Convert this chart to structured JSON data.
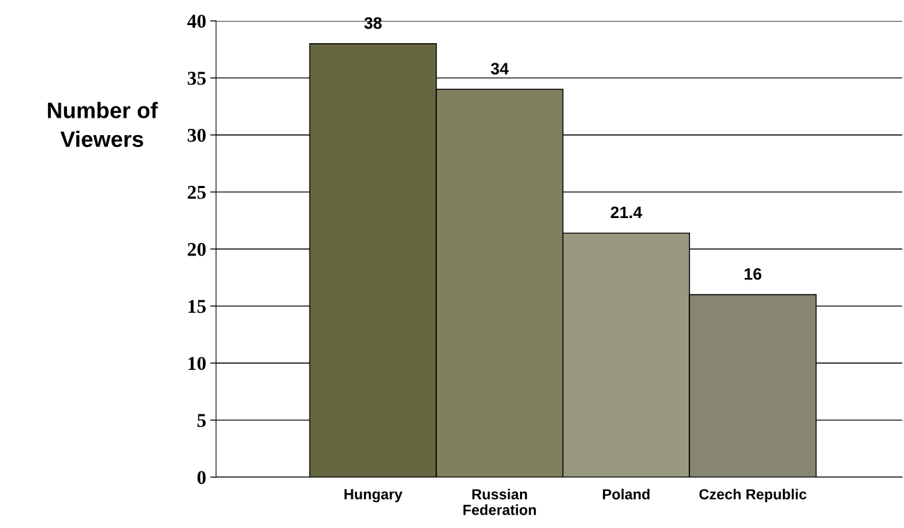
{
  "chart_data": {
    "type": "bar",
    "ylabel": "Number of\nViewers",
    "categories": [
      "Hungary",
      "Russian\nFederation",
      "Poland",
      "Czech Republic"
    ],
    "values": [
      38,
      34,
      21.4,
      16
    ],
    "colors": [
      "#666640",
      "#80805f",
      "#999980",
      "#868673"
    ],
    "ylim": [
      0,
      40
    ],
    "yticks": [
      0,
      5,
      10,
      15,
      20,
      25,
      30,
      35,
      40
    ],
    "grid": "y",
    "data_labels": true
  }
}
